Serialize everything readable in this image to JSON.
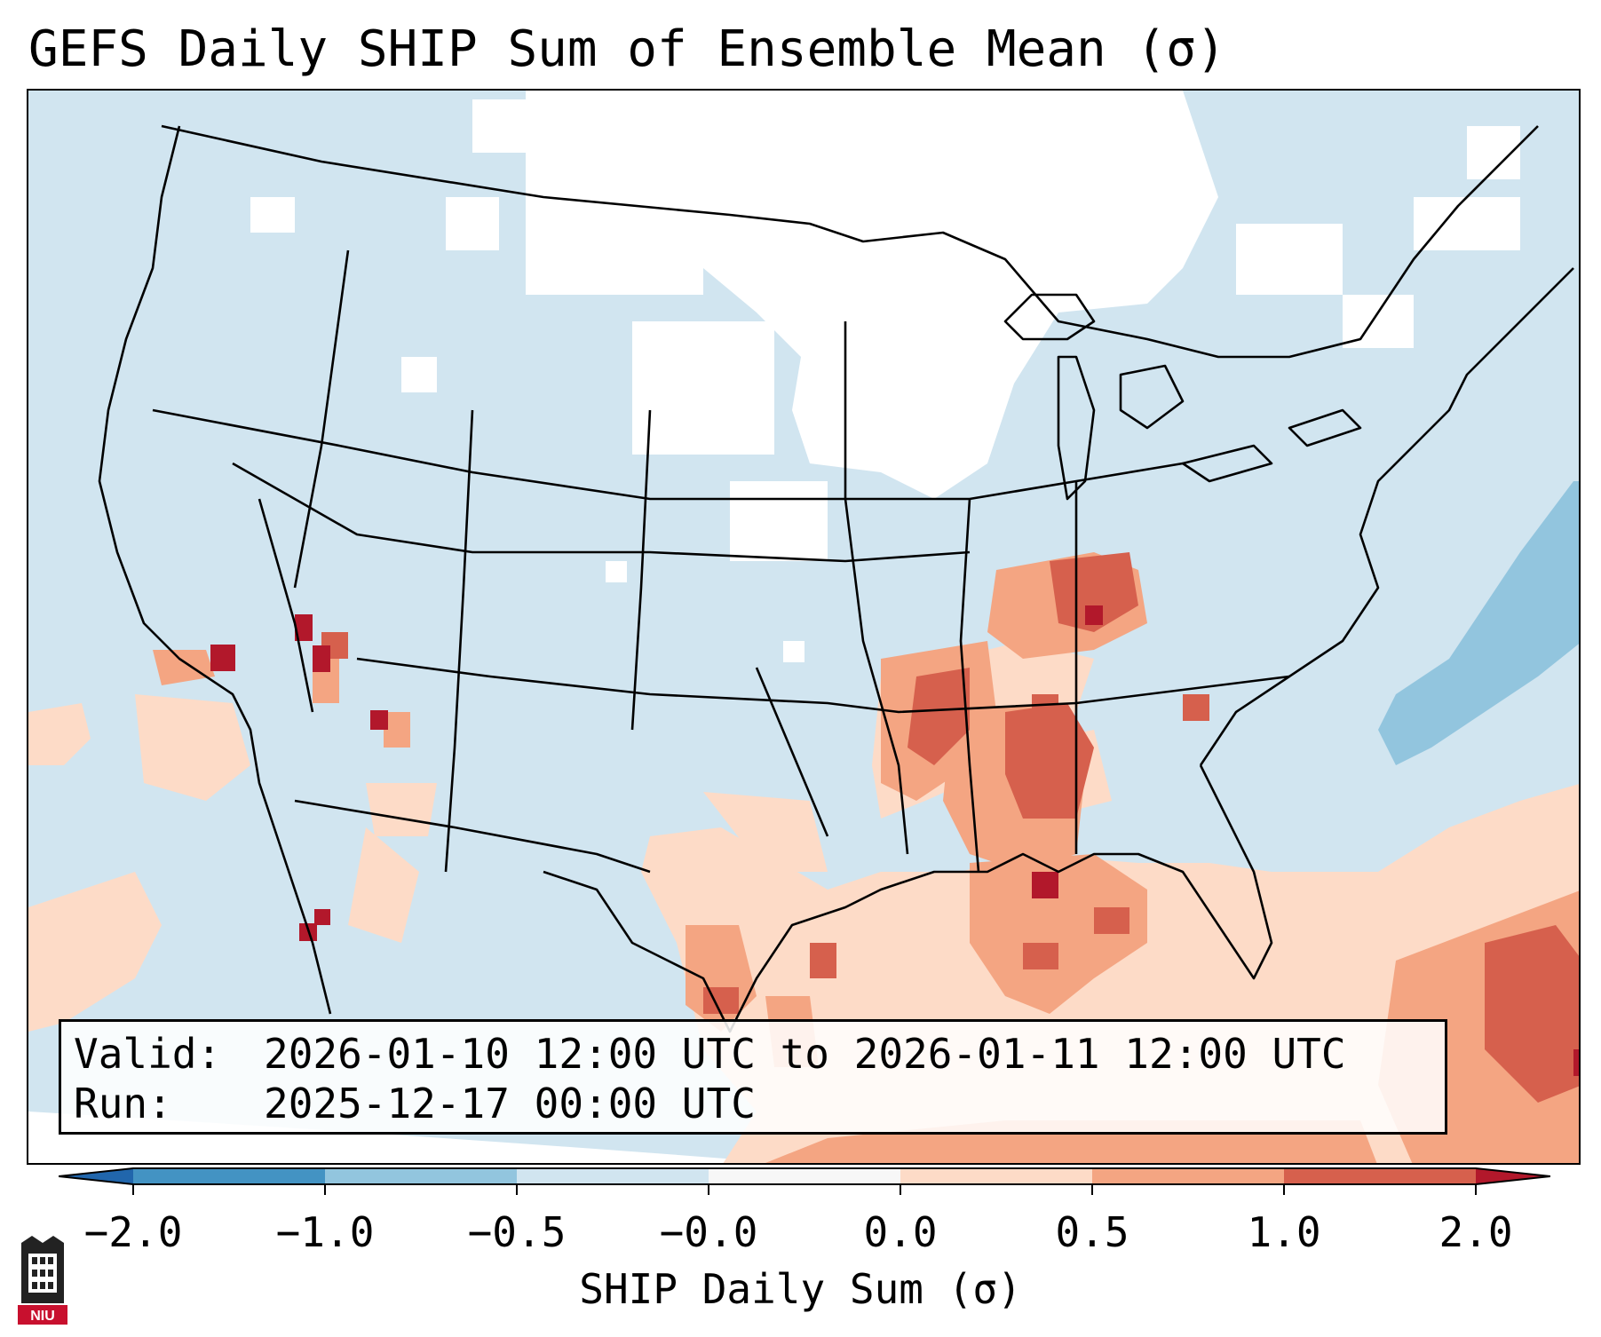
{
  "title": "GEFS Daily SHIP Sum of Ensemble Mean (σ)",
  "map": {
    "region": "Contiguous United States",
    "colors": {
      "ocean_land_default": "#d1e5f0",
      "no_signal": "#ffffff",
      "light_positive": "#fddbc7",
      "moderate_positive": "#f4a582",
      "strong_positive": "#d6604d",
      "extreme_positive": "#b2182b",
      "moderate_negative": "#92c5de"
    }
  },
  "info": {
    "valid_key": "Valid:",
    "valid_value": "2026-01-10 12:00 UTC to 2026-01-11 12:00 UTC",
    "run_key": "Run:",
    "run_value": "2025-12-17 00:00 UTC"
  },
  "colorbar": {
    "label": "SHIP Daily Sum (σ)",
    "ticks": [
      "−2.0",
      "−1.0",
      "−0.5",
      "−0.0",
      "0.0",
      "0.5",
      "1.0",
      "2.0"
    ],
    "bins": [
      {
        "from": "−2.0",
        "to": "−1.0",
        "color": "#4393c3"
      },
      {
        "from": "−1.0",
        "to": "−0.5",
        "color": "#92c5de"
      },
      {
        "from": "−0.5",
        "to": "−0.0",
        "color": "#d1e5f0"
      },
      {
        "from": "−0.0",
        "to": "0.0",
        "color": "#f7f7f7"
      },
      {
        "from": "0.0",
        "to": "0.5",
        "color": "#fddbc7"
      },
      {
        "from": "0.5",
        "to": "1.0",
        "color": "#f4a582"
      },
      {
        "from": "1.0",
        "to": "2.0",
        "color": "#d6604d"
      }
    ],
    "under_color": "#2166ac",
    "over_color": "#b2182b"
  },
  "logo": {
    "text": "NIU"
  }
}
